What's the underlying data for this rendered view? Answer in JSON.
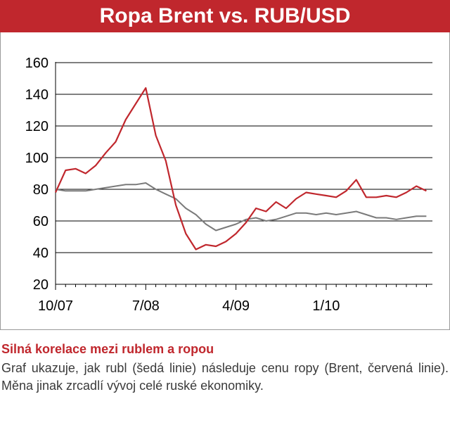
{
  "chart_data": {
    "type": "line",
    "title": "Ropa Brent vs. RUB/USD",
    "xlabel": "",
    "ylabel": "",
    "ylim": [
      20,
      160
    ],
    "yticks": [
      20,
      40,
      60,
      80,
      100,
      120,
      140,
      160
    ],
    "xtick_labels": [
      "10/07",
      "7/08",
      "4/09",
      "1/10"
    ],
    "grid": true,
    "legend": "none",
    "series": [
      {
        "color": "#c0272d",
        "x": [
          "2007-10",
          "2007-11",
          "2007-12",
          "2008-01",
          "2008-02",
          "2008-03",
          "2008-04",
          "2008-05",
          "2008-06",
          "2008-07",
          "2008-08",
          "2008-09",
          "2008-10",
          "2008-11",
          "2008-12",
          "2009-01",
          "2009-02",
          "2009-03",
          "2009-04",
          "2009-05",
          "2009-06",
          "2009-07",
          "2009-08",
          "2009-09",
          "2009-10",
          "2009-11",
          "2009-12",
          "2010-01",
          "2010-02",
          "2010-03",
          "2010-04",
          "2010-05",
          "2010-06",
          "2010-07",
          "2010-08",
          "2010-09",
          "2010-10",
          "2010-11"
        ],
        "values": [
          78,
          92,
          93,
          90,
          95,
          103,
          110,
          124,
          134,
          144,
          114,
          98,
          70,
          52,
          42,
          45,
          44,
          47,
          52,
          59,
          68,
          66,
          72,
          68,
          74,
          78,
          77,
          76,
          75,
          79,
          86,
          75,
          75,
          76,
          75,
          78,
          82,
          79
        ]
      },
      {
        "color": "#7a7a7a",
        "x": [
          "2007-10",
          "2007-11",
          "2007-12",
          "2008-01",
          "2008-02",
          "2008-03",
          "2008-04",
          "2008-05",
          "2008-06",
          "2008-07",
          "2008-08",
          "2008-09",
          "2008-10",
          "2008-11",
          "2008-12",
          "2009-01",
          "2009-02",
          "2009-03",
          "2009-04",
          "2009-05",
          "2009-06",
          "2009-07",
          "2009-08",
          "2009-09",
          "2009-10",
          "2009-11",
          "2009-12",
          "2010-01",
          "2010-02",
          "2010-03",
          "2010-04",
          "2010-05",
          "2010-06",
          "2010-07",
          "2010-08",
          "2010-09",
          "2010-10",
          "2010-11"
        ],
        "values": [
          80,
          79,
          79,
          79,
          80,
          81,
          82,
          83,
          83,
          84,
          80,
          77,
          74,
          68,
          64,
          58,
          54,
          56,
          58,
          61,
          62,
          60,
          61,
          63,
          65,
          65,
          64,
          65,
          64,
          65,
          66,
          64,
          62,
          62,
          61,
          62,
          63,
          63
        ]
      }
    ]
  },
  "caption": {
    "heading": "Silná korelace mezi rublem a ropou",
    "body": "Graf ukazuje, jak rubl (šedá linie) následuje cenu ropy (Brent, červená linie). Měna jinak zrcadlí vývoj celé ruské ekonomiky."
  }
}
